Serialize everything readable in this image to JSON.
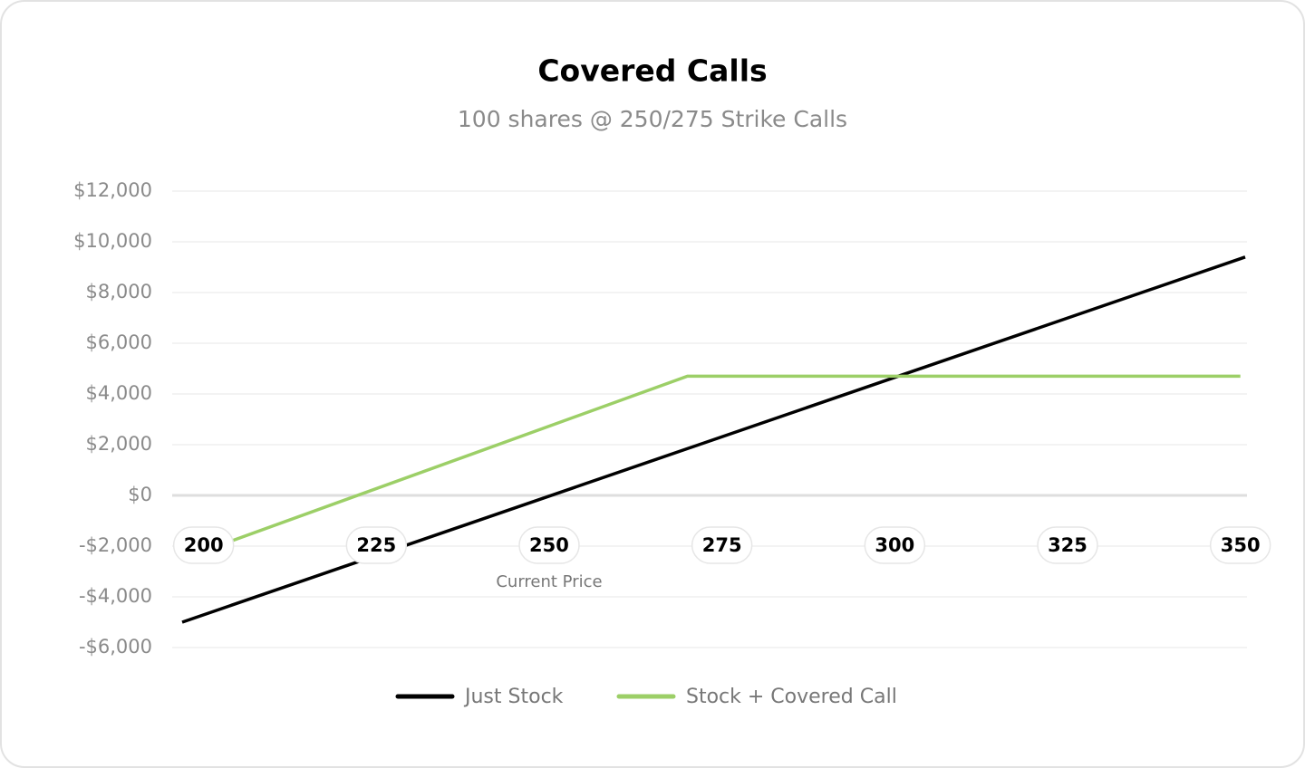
{
  "chart_data": {
    "type": "line",
    "title": "Covered Calls",
    "subtitle": "100 shares @ 250/275 Strike Calls",
    "xlim": [
      196.9,
      350.7
    ],
    "xticks": [
      200,
      225,
      250,
      275,
      300,
      325,
      350
    ],
    "ylim": [
      -6000,
      12000
    ],
    "yticks": [
      {
        "value": -6000,
        "label": "-$6,000"
      },
      {
        "value": -4000,
        "label": "-$4,000"
      },
      {
        "value": -2000,
        "label": "-$2,000"
      },
      {
        "value": 0,
        "label": "$0"
      },
      {
        "value": 2000,
        "label": "$2,000"
      },
      {
        "value": 4000,
        "label": "$4,000"
      },
      {
        "value": 6000,
        "label": "$6,000"
      },
      {
        "value": 8000,
        "label": "$8,000"
      },
      {
        "value": 10000,
        "label": "$10,000"
      },
      {
        "value": 12000,
        "label": "$12,000"
      }
    ],
    "grid": true,
    "annotations": [
      {
        "text": "Current Price",
        "x": 250
      }
    ],
    "series": [
      {
        "name": "Just Stock",
        "color": "#000000",
        "x": [
          196.9,
          350.7
        ],
        "values": [
          -5000,
          9400
        ]
      },
      {
        "name": "Stock + Covered Call",
        "color": "#9ccf67",
        "x": [
          204,
          270,
          350
        ],
        "values": [
          -1800,
          4700,
          4700
        ]
      }
    ],
    "legend": "bottom"
  }
}
